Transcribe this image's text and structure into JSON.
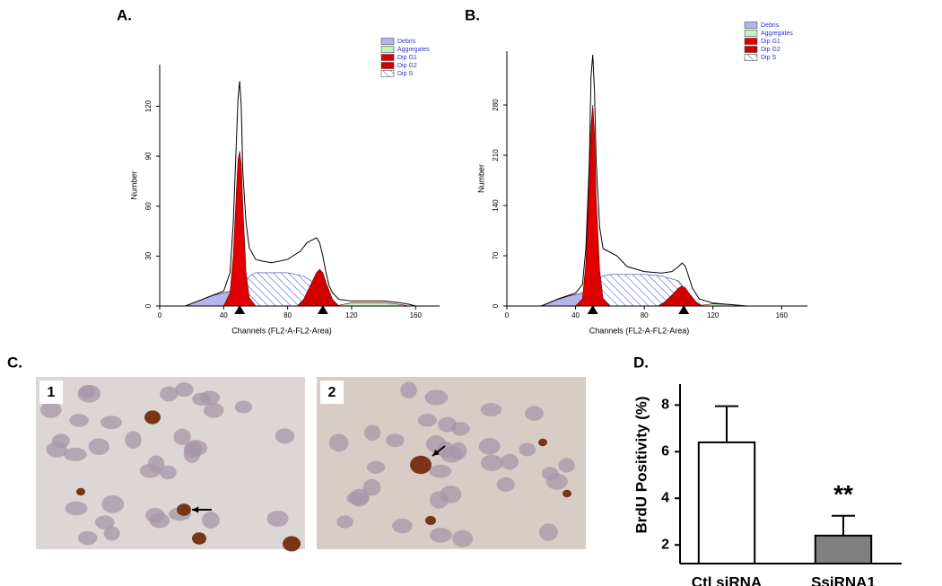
{
  "chart_data": [
    {
      "type": "area",
      "panel_label": "A.",
      "y_label": "Number",
      "x_label": "Channels (FL2-A-FL2-Area)",
      "xlim": [
        0,
        175
      ],
      "xticks": [
        0,
        40,
        80,
        120,
        160
      ],
      "ylim": [
        0,
        145
      ],
      "yticks": [
        0,
        30,
        60,
        90,
        120
      ],
      "legend": "top-right",
      "series": [
        {
          "name": "Debris",
          "color": "#b4b4ec",
          "x": [
            16,
            24,
            32,
            40,
            44,
            48,
            52,
            56,
            60
          ],
          "values": [
            0,
            3,
            6,
            8,
            9,
            8,
            4,
            1,
            0
          ]
        },
        {
          "name": "Aggregates",
          "color": "#c8f0c0",
          "x": [
            110,
            120,
            130,
            140,
            150,
            156
          ],
          "values": [
            0,
            2,
            2,
            2,
            1,
            0
          ]
        },
        {
          "name": "Dip G1",
          "color": "#e00000",
          "x": [
            40,
            44,
            46,
            48,
            49,
            50,
            51,
            52,
            54,
            56,
            60
          ],
          "values": [
            0,
            8,
            30,
            70,
            88,
            93,
            85,
            60,
            20,
            5,
            0
          ]
        },
        {
          "name": "Dip G2",
          "color": "#d00000",
          "x": [
            86,
            90,
            94,
            98,
            100,
            102,
            104,
            108,
            112
          ],
          "values": [
            0,
            4,
            12,
            20,
            22,
            20,
            14,
            4,
            0
          ]
        },
        {
          "name": "Dip S",
          "color": "#3a3ac8",
          "hatch": true,
          "x": [
            44,
            48,
            52,
            56,
            60,
            70,
            80,
            90,
            100,
            104,
            108
          ],
          "values": [
            0,
            5,
            12,
            18,
            20,
            20,
            20,
            18,
            12,
            6,
            0
          ]
        }
      ],
      "outline": {
        "color": "#000000",
        "x": [
          16,
          24,
          32,
          40,
          44,
          46,
          48,
          49,
          50,
          51,
          52,
          54,
          56,
          60,
          64,
          70,
          80,
          88,
          92,
          96,
          98,
          100,
          102,
          104,
          106,
          108,
          112,
          120,
          130,
          140,
          150,
          156,
          160
        ],
        "values": [
          0,
          3,
          6,
          9,
          20,
          50,
          100,
          125,
          135,
          120,
          80,
          50,
          35,
          28,
          27,
          26,
          28,
          33,
          38,
          40,
          41,
          38,
          30,
          20,
          12,
          8,
          4,
          3,
          3,
          3,
          2,
          1,
          0
        ]
      },
      "peak_markers": [
        50,
        102
      ]
    },
    {
      "type": "area",
      "panel_label": "B.",
      "y_label": "Number",
      "x_label": "Channels (FL2-A-FL2-Area)",
      "xlim": [
        0,
        175
      ],
      "xticks": [
        0,
        40,
        80,
        120,
        160
      ],
      "ylim": [
        0,
        355
      ],
      "yticks": [
        0,
        70,
        140,
        210,
        280
      ],
      "legend": "top-right",
      "series": [
        {
          "name": "Debris",
          "color": "#b4b4ec",
          "x": [
            20,
            28,
            36,
            44,
            48,
            52,
            56
          ],
          "values": [
            0,
            8,
            14,
            18,
            14,
            6,
            0
          ]
        },
        {
          "name": "Aggregates",
          "color": "#c8f0c0",
          "x": [
            110,
            120,
            130,
            140
          ],
          "values": [
            0,
            3,
            2,
            0
          ]
        },
        {
          "name": "Dip G1",
          "color": "#e00000",
          "x": [
            40,
            44,
            46,
            48,
            49,
            50,
            51,
            52,
            54,
            56,
            60
          ],
          "values": [
            0,
            10,
            60,
            180,
            250,
            280,
            240,
            150,
            50,
            10,
            0
          ]
        },
        {
          "name": "Dip G2",
          "color": "#d00000",
          "x": [
            88,
            92,
            96,
            100,
            102,
            104,
            106,
            110,
            114
          ],
          "values": [
            0,
            6,
            15,
            25,
            28,
            25,
            18,
            6,
            0
          ]
        },
        {
          "name": "Dip S",
          "color": "#3a3ac8",
          "hatch": true,
          "x": [
            44,
            48,
            52,
            56,
            60,
            70,
            80,
            90,
            100,
            106,
            110
          ],
          "values": [
            0,
            20,
            35,
            42,
            44,
            44,
            44,
            42,
            35,
            15,
            0
          ]
        }
      ],
      "outline": {
        "color": "#000000",
        "x": [
          20,
          30,
          40,
          44,
          46,
          48,
          49,
          50,
          51,
          52,
          54,
          56,
          60,
          64,
          70,
          80,
          90,
          96,
          100,
          102,
          104,
          106,
          108,
          112,
          120,
          130,
          140
        ],
        "values": [
          0,
          10,
          18,
          30,
          80,
          200,
          320,
          350,
          300,
          200,
          110,
          80,
          75,
          70,
          55,
          48,
          46,
          48,
          55,
          60,
          55,
          40,
          25,
          10,
          4,
          2,
          0
        ]
      },
      "peak_markers": [
        50,
        103
      ]
    },
    {
      "type": "bar",
      "panel_label": "D.",
      "y_label": "BrdU Positivity (%)",
      "categories": [
        "Ctl siRNA",
        "SsiRNA1"
      ],
      "values": [
        6.4,
        2.4
      ],
      "errors": [
        1.55,
        0.85
      ],
      "colors": [
        "#ffffff",
        "#808080"
      ],
      "value_annotations": [
        null,
        "**"
      ],
      "ylim": [
        1.2,
        8.9
      ],
      "yticks": [
        2,
        4,
        6,
        8
      ]
    }
  ],
  "panel_c": {
    "label": "C.",
    "images": [
      "1",
      "2"
    ]
  }
}
